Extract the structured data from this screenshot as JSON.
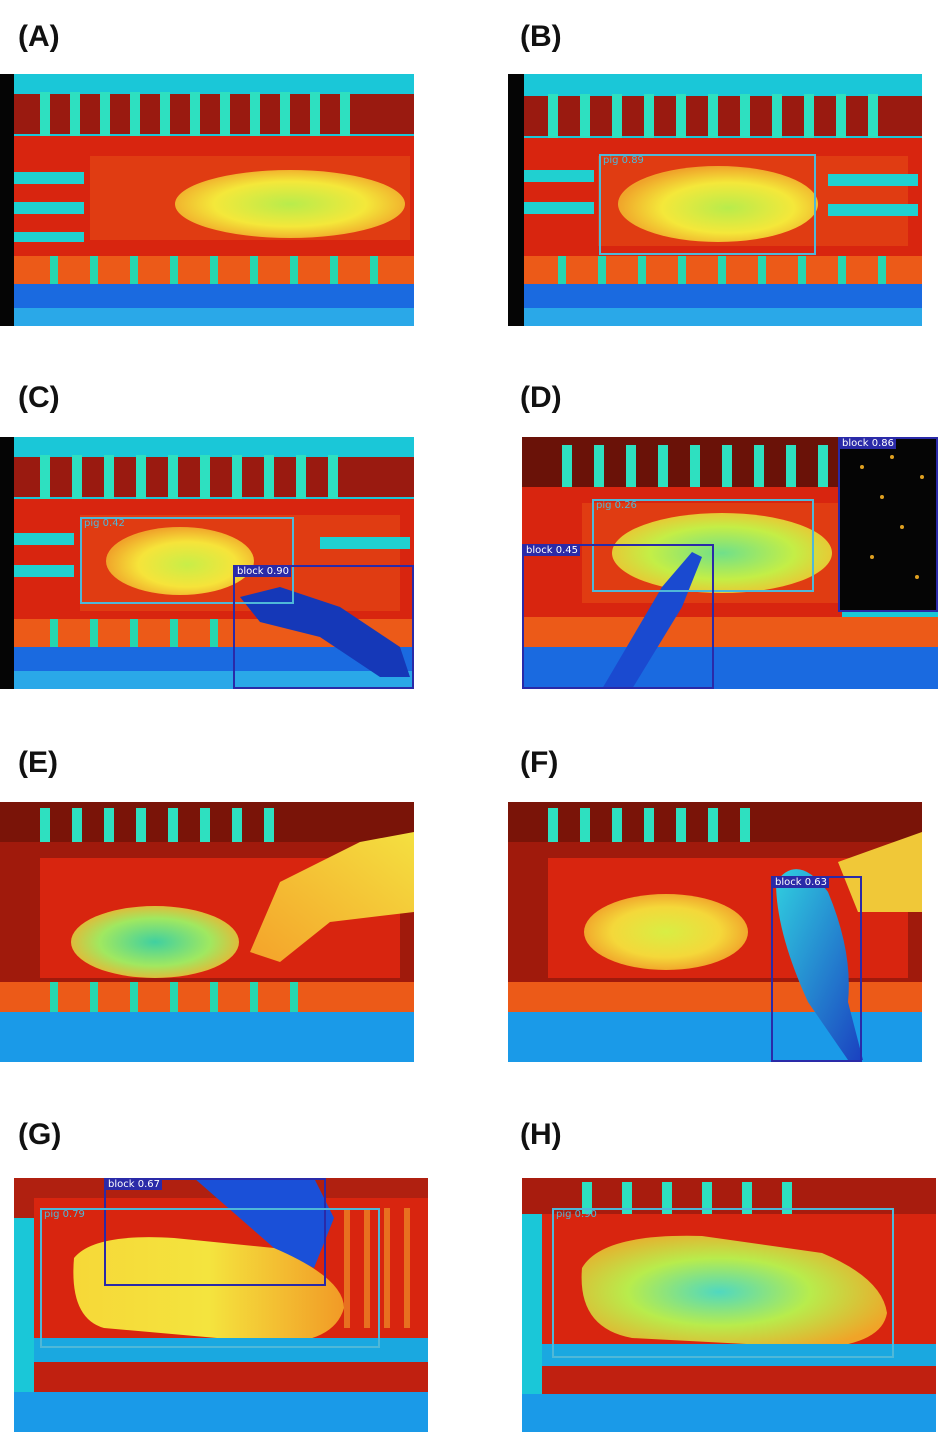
{
  "panels": [
    {
      "id": "A",
      "label": "(A)",
      "detections": []
    },
    {
      "id": "B",
      "label": "(B)",
      "detections": [
        {
          "text": "pig 0.89",
          "cls": "pig"
        }
      ]
    },
    {
      "id": "C",
      "label": "(C)",
      "detections": [
        {
          "text": "pig 0.42",
          "cls": "pig"
        },
        {
          "text": "block 0.90",
          "cls": "block"
        }
      ]
    },
    {
      "id": "D",
      "label": "(D)",
      "detections": [
        {
          "text": "block 0.86",
          "cls": "block"
        },
        {
          "text": "pig 0.26",
          "cls": "pig"
        },
        {
          "text": "block 0.45",
          "cls": "block"
        }
      ]
    },
    {
      "id": "E",
      "label": "(E)",
      "detections": []
    },
    {
      "id": "F",
      "label": "(F)",
      "detections": [
        {
          "text": "block 0.63",
          "cls": "block"
        }
      ]
    },
    {
      "id": "G",
      "label": "(G)",
      "detections": [
        {
          "text": "block 0.67",
          "cls": "block"
        },
        {
          "text": "pig 0.79",
          "cls": "pig"
        }
      ]
    },
    {
      "id": "H",
      "label": "(H)",
      "detections": [
        {
          "text": "pig 0.90",
          "cls": "pig"
        }
      ]
    }
  ],
  "colors": {
    "pig_box": "#4fb8d8",
    "block_box": "#2a2aa8"
  }
}
